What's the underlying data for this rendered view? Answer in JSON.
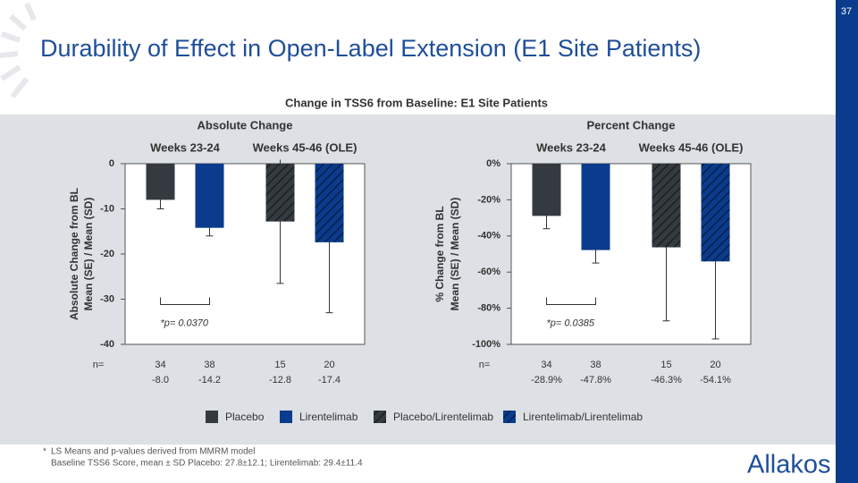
{
  "slide_number": "37",
  "title": "Durability of Effect in Open-Label Extension (E1 Site Patients)",
  "section_title": "Change in TSS6 from Baseline: E1 Site Patients",
  "chart_data": [
    {
      "type": "bar",
      "title": "Absolute Change",
      "y_label": [
        "Absolute Change from BL",
        "Mean (SE) / Mean (SD)"
      ],
      "categories": [
        "Weeks 23-24",
        "Weeks 45-46 (OLE)"
      ],
      "ylim": [
        -40,
        0
      ],
      "yticks": [
        0,
        -10,
        -20,
        -30,
        -40
      ],
      "n_label": "n=",
      "annotation": "*p= 0.0370",
      "series": [
        {
          "name": "Placebo",
          "color": "#343a40",
          "hatch": false,
          "values": [
            -8.0,
            null
          ],
          "value_labels": [
            "-8.0",
            null
          ],
          "errors": [
            2.0,
            null
          ],
          "n": [
            34,
            null
          ]
        },
        {
          "name": "Lirentelimab",
          "color": "#0b3b8c",
          "hatch": false,
          "values": [
            -14.2,
            null
          ],
          "value_labels": [
            "-14.2",
            null
          ],
          "errors": [
            1.8,
            null
          ],
          "n": [
            38,
            null
          ]
        },
        {
          "name": "Placebo/Lirentelimab",
          "color": "#343a40",
          "hatch": true,
          "values": [
            null,
            -12.8
          ],
          "value_labels": [
            null,
            "-12.8"
          ],
          "errors": [
            null,
            13.7
          ],
          "n": [
            null,
            15
          ]
        },
        {
          "name": "Lirentelimab/Lirentelimab",
          "color": "#0b3b8c",
          "hatch": true,
          "values": [
            null,
            -17.4
          ],
          "value_labels": [
            null,
            "-17.4"
          ],
          "errors": [
            null,
            15.6
          ],
          "n": [
            null,
            20
          ]
        }
      ]
    },
    {
      "type": "bar",
      "title": "Percent Change",
      "y_label": [
        "% Change from BL",
        "Mean (SE) / Mean (SD)"
      ],
      "categories": [
        "Weeks 23-24",
        "Weeks 45-46 (OLE)"
      ],
      "ylim": [
        -100,
        0
      ],
      "yticks": [
        {
          "value": 0,
          "label": "0%"
        },
        {
          "value": -20,
          "label": "-20%"
        },
        {
          "value": -40,
          "label": "-40%"
        },
        {
          "value": -60,
          "label": "-60%"
        },
        {
          "value": -80,
          "label": "-80%"
        },
        {
          "value": -100,
          "label": "-100%"
        }
      ],
      "n_label": "n=",
      "annotation": "*p= 0.0385",
      "series": [
        {
          "name": "Placebo",
          "color": "#343a40",
          "hatch": false,
          "values": [
            -28.9,
            null
          ],
          "value_labels": [
            "-28.9%",
            null
          ],
          "errors": [
            7.1,
            null
          ],
          "n": [
            34,
            null
          ]
        },
        {
          "name": "Lirentelimab",
          "color": "#0b3b8c",
          "hatch": false,
          "values": [
            -47.8,
            null
          ],
          "value_labels": [
            "-47.8%",
            null
          ],
          "errors": [
            7.2,
            null
          ],
          "n": [
            38,
            null
          ]
        },
        {
          "name": "Placebo/Lirentelimab",
          "color": "#343a40",
          "hatch": true,
          "values": [
            null,
            -46.3
          ],
          "value_labels": [
            null,
            "-46.3%"
          ],
          "errors": [
            null,
            40.7
          ],
          "n": [
            null,
            15
          ]
        },
        {
          "name": "Lirentelimab/Lirentelimab",
          "color": "#0b3b8c",
          "hatch": true,
          "values": [
            null,
            -54.1
          ],
          "value_labels": [
            null,
            "-54.1%"
          ],
          "errors": [
            null,
            42.9
          ],
          "n": [
            null,
            20
          ]
        }
      ]
    }
  ],
  "footnotes": {
    "marker": "*",
    "lines": [
      "LS Means and p-values derived from MMRM model",
      "Baseline TSS6 Score, mean ± SD   Placebo: 27.8±12.1; Lirentelimab: 29.4±11.4"
    ]
  },
  "logo": "Allakos"
}
